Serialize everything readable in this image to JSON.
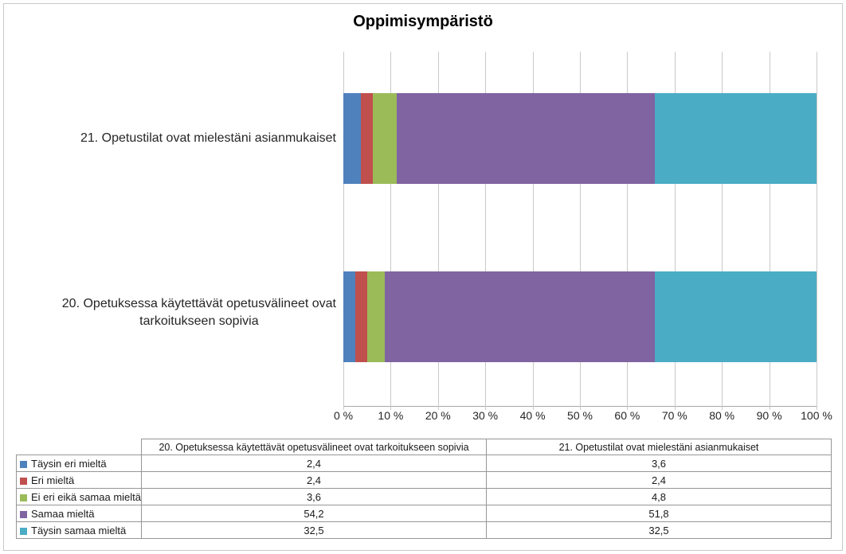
{
  "title": "Oppimisympäristö",
  "chart_data": {
    "type": "bar",
    "orientation": "horizontal",
    "stacked": true,
    "normalized_100_percent": true,
    "title": "Oppimisympäristö",
    "grid": true,
    "xlim": [
      0,
      100
    ],
    "x_ticks": [
      "0 %",
      "10 %",
      "20 %",
      "30 %",
      "40 %",
      "50 %",
      "60 %",
      "70 %",
      "80 %",
      "90 %",
      "100 %"
    ],
    "categories": [
      "21. Opetustilat ovat mielestäni asianmukaiset",
      "20. Opetuksessa käytettävät opetusvälineet ovat\ntarkoitukseen sopivia"
    ],
    "series": [
      {
        "name": "Täysin eri mieltä",
        "color": "#4F81BD",
        "values": [
          3.6,
          2.4
        ]
      },
      {
        "name": "Eri mieltä",
        "color": "#C0504D",
        "values": [
          2.4,
          2.4
        ]
      },
      {
        "name": "Ei eri eikä samaa mieltä",
        "color": "#9BBB59",
        "values": [
          4.8,
          3.6
        ]
      },
      {
        "name": "Samaa mieltä",
        "color": "#8064A2",
        "values": [
          51.8,
          54.2
        ]
      },
      {
        "name": "Täysin samaa mieltä",
        "color": "#4BACC6",
        "values": [
          32.5,
          32.5
        ]
      }
    ],
    "legend_position": "table-below-left-column"
  },
  "table": {
    "corner_label": "",
    "columns": [
      "20. Opetuksessa käytettävät opetusvälineet ovat tarkoitukseen sopivia",
      "21. Opetustilat ovat mielestäni asianmukaiset"
    ],
    "rows": [
      {
        "label": "Täysin eri mieltä",
        "color": "#4F81BD",
        "values": [
          "2,4",
          "3,6"
        ]
      },
      {
        "label": "Eri mieltä",
        "color": "#C0504D",
        "values": [
          "2,4",
          "2,4"
        ]
      },
      {
        "label": "Ei eri eikä samaa mieltä",
        "color": "#9BBB59",
        "values": [
          "3,6",
          "4,8"
        ]
      },
      {
        "label": "Samaa mieltä",
        "color": "#8064A2",
        "values": [
          "54,2",
          "51,8"
        ]
      },
      {
        "label": "Täysin samaa mieltä",
        "color": "#4BACC6",
        "values": [
          "32,5",
          "32,5"
        ]
      }
    ]
  }
}
